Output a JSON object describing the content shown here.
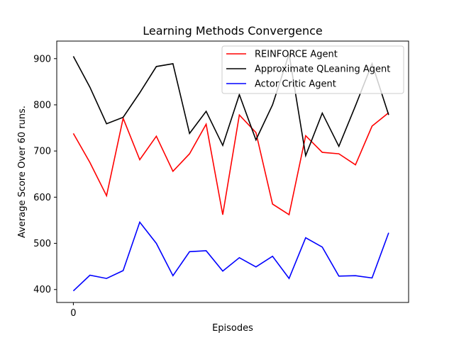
{
  "chart_data": {
    "type": "line",
    "title": "Learning Methods Convergence",
    "xlabel": "Episodes",
    "ylabel": "Average Score Over 60 runs.",
    "x": [
      0,
      1,
      2,
      3,
      4,
      5,
      6,
      7,
      8,
      9,
      10,
      11,
      12,
      13,
      14,
      15,
      16,
      17,
      18,
      19
    ],
    "xticks": [
      0
    ],
    "xlim": [
      -1,
      20.2
    ],
    "yticks": [
      400,
      500,
      600,
      700,
      800,
      900
    ],
    "ylim": [
      372,
      938
    ],
    "grid": false,
    "legend_position": "top-right",
    "series": [
      {
        "name": "REINFORCE Agent",
        "color": "#ff0000",
        "values": [
          738,
          675,
          603,
          771,
          681,
          732,
          656,
          694,
          758,
          562,
          778,
          740,
          585,
          562,
          733,
          697,
          694,
          670,
          754,
          783
        ]
      },
      {
        "name": "Approximate QLeaning Agent",
        "color": "#000000",
        "values": [
          905,
          838,
          759,
          773,
          826,
          883,
          889,
          738,
          786,
          712,
          822,
          724,
          800,
          910,
          690,
          782,
          710,
          798,
          889,
          778
        ]
      },
      {
        "name": "Actor Critic Agent",
        "color": "#0000ff",
        "values": [
          397,
          431,
          424,
          441,
          546,
          500,
          430,
          482,
          484,
          440,
          469,
          449,
          472,
          424,
          512,
          492,
          429,
          430,
          425,
          523
        ]
      }
    ]
  }
}
